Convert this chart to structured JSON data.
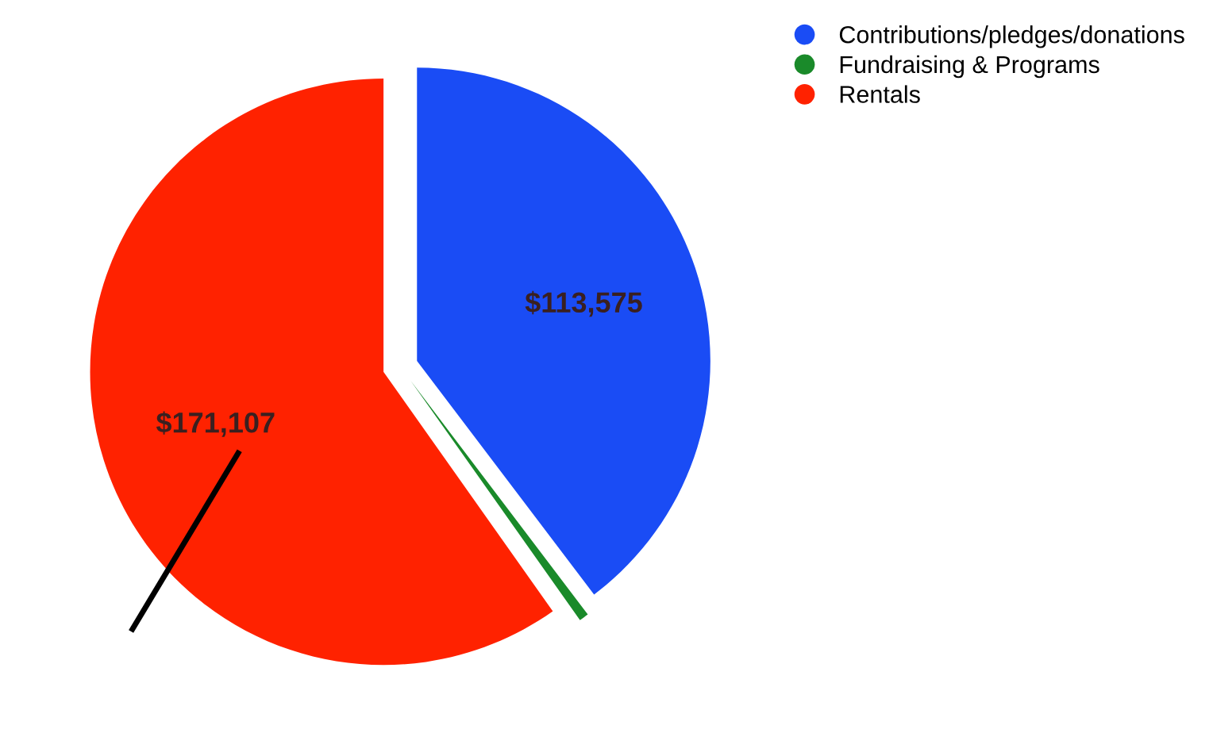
{
  "chart_data": {
    "type": "pie",
    "categories": [
      "Contributions/pledges/donations",
      "Fundraising & Programs",
      "Rentals"
    ],
    "values": [
      113575,
      1500,
      171107
    ],
    "colors": [
      "#1a4cf5",
      "#1a8a2a",
      "#ff2200"
    ],
    "value_labels": [
      "$113,575",
      null,
      "$171,107"
    ],
    "legend": "top right"
  }
}
